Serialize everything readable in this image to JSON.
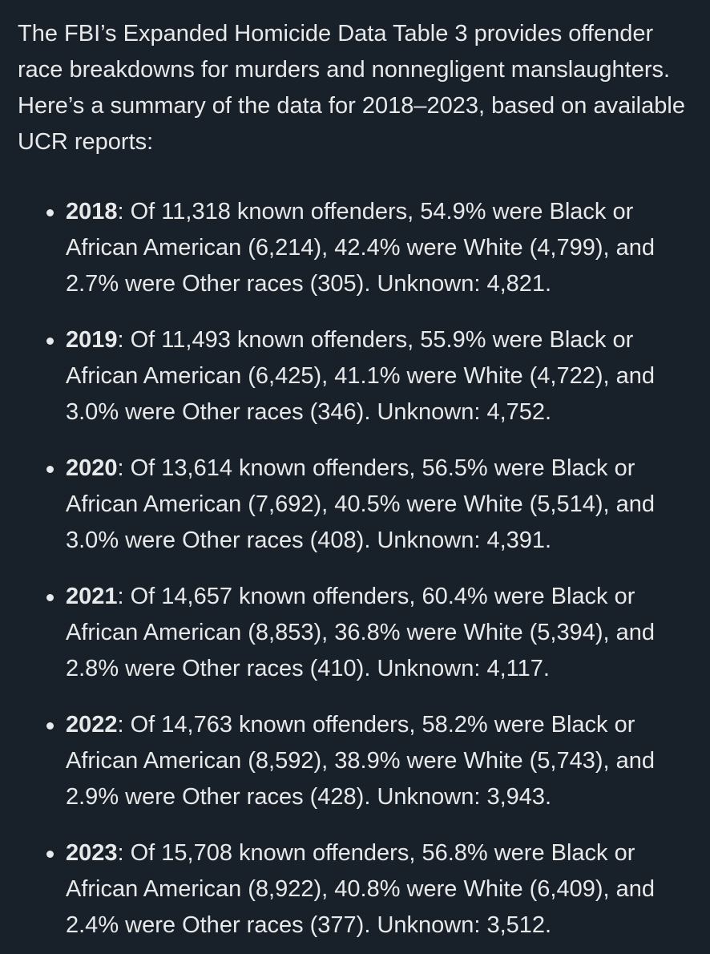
{
  "intro": "The FBI’s Expanded Homicide Data Table 3 provides offender race breakdowns for murders and nonnegligent manslaughters. Here’s a summary of the data for 2018–2023, based on available UCR reports:",
  "items": [
    {
      "year": "2018",
      "text": ": Of 11,318 known offenders, 54.9% were Black or African American (6,214), 42.4% were White (4,799), and 2.7% were Other races (305). Unknown: 4,821."
    },
    {
      "year": "2019",
      "text": ": Of 11,493 known offenders, 55.9% were Black or African American (6,425), 41.1% were White (4,722), and 3.0% were Other races (346). Unknown: 4,752."
    },
    {
      "year": "2020",
      "text": ": Of 13,614 known offenders, 56.5% were Black or African American (7,692), 40.5% were White (5,514), and 3.0% were Other races (408). Unknown: 4,391."
    },
    {
      "year": "2021",
      "text": ": Of 14,657 known offenders, 60.4% were Black or African American (8,853), 36.8% were White (5,394), and 2.8% were Other races (410). Unknown: 4,117."
    },
    {
      "year": "2022",
      "text": ": Of 14,763 known offenders, 58.2% were Black or African American (8,592), 38.9% were White (5,743), and 2.9% were Other races (428). Unknown: 3,943."
    },
    {
      "year": "2023",
      "text": ": Of 15,708 known offenders, 56.8% were Black or African American (8,922), 40.8% were White (6,409), and 2.4% were Other races (377). Unknown: 3,512."
    }
  ],
  "colors": {
    "background": "#182029",
    "text": "#e7e9ea"
  }
}
